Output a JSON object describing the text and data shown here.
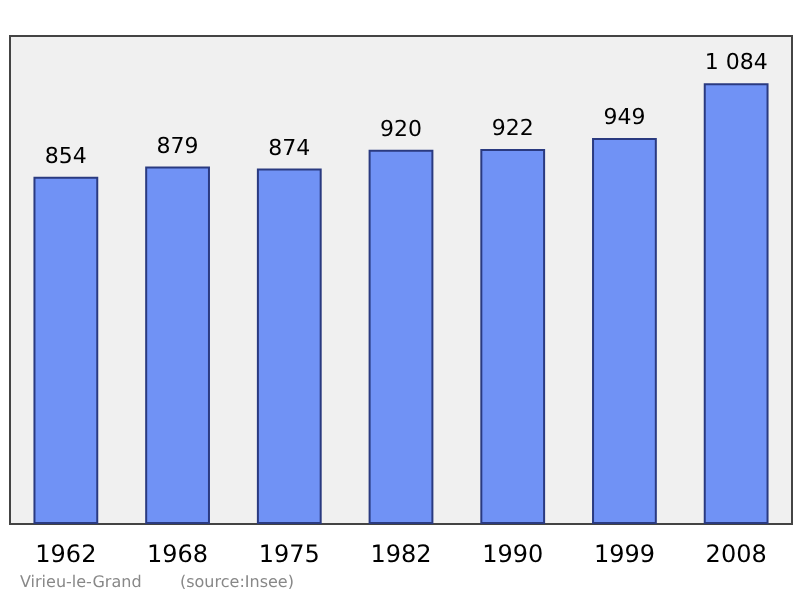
{
  "chart_data": {
    "type": "bar",
    "categories": [
      "1962",
      "1968",
      "1975",
      "1982",
      "1990",
      "1999",
      "2008"
    ],
    "values": [
      854,
      879,
      874,
      920,
      922,
      949,
      1084
    ],
    "value_labels": [
      "854",
      "879",
      "874",
      "920",
      "922",
      "949",
      "1 084"
    ],
    "color": "#7092f5",
    "annotations": [
      "Virieu-le-Grand",
      "(source:Insee)"
    ]
  }
}
